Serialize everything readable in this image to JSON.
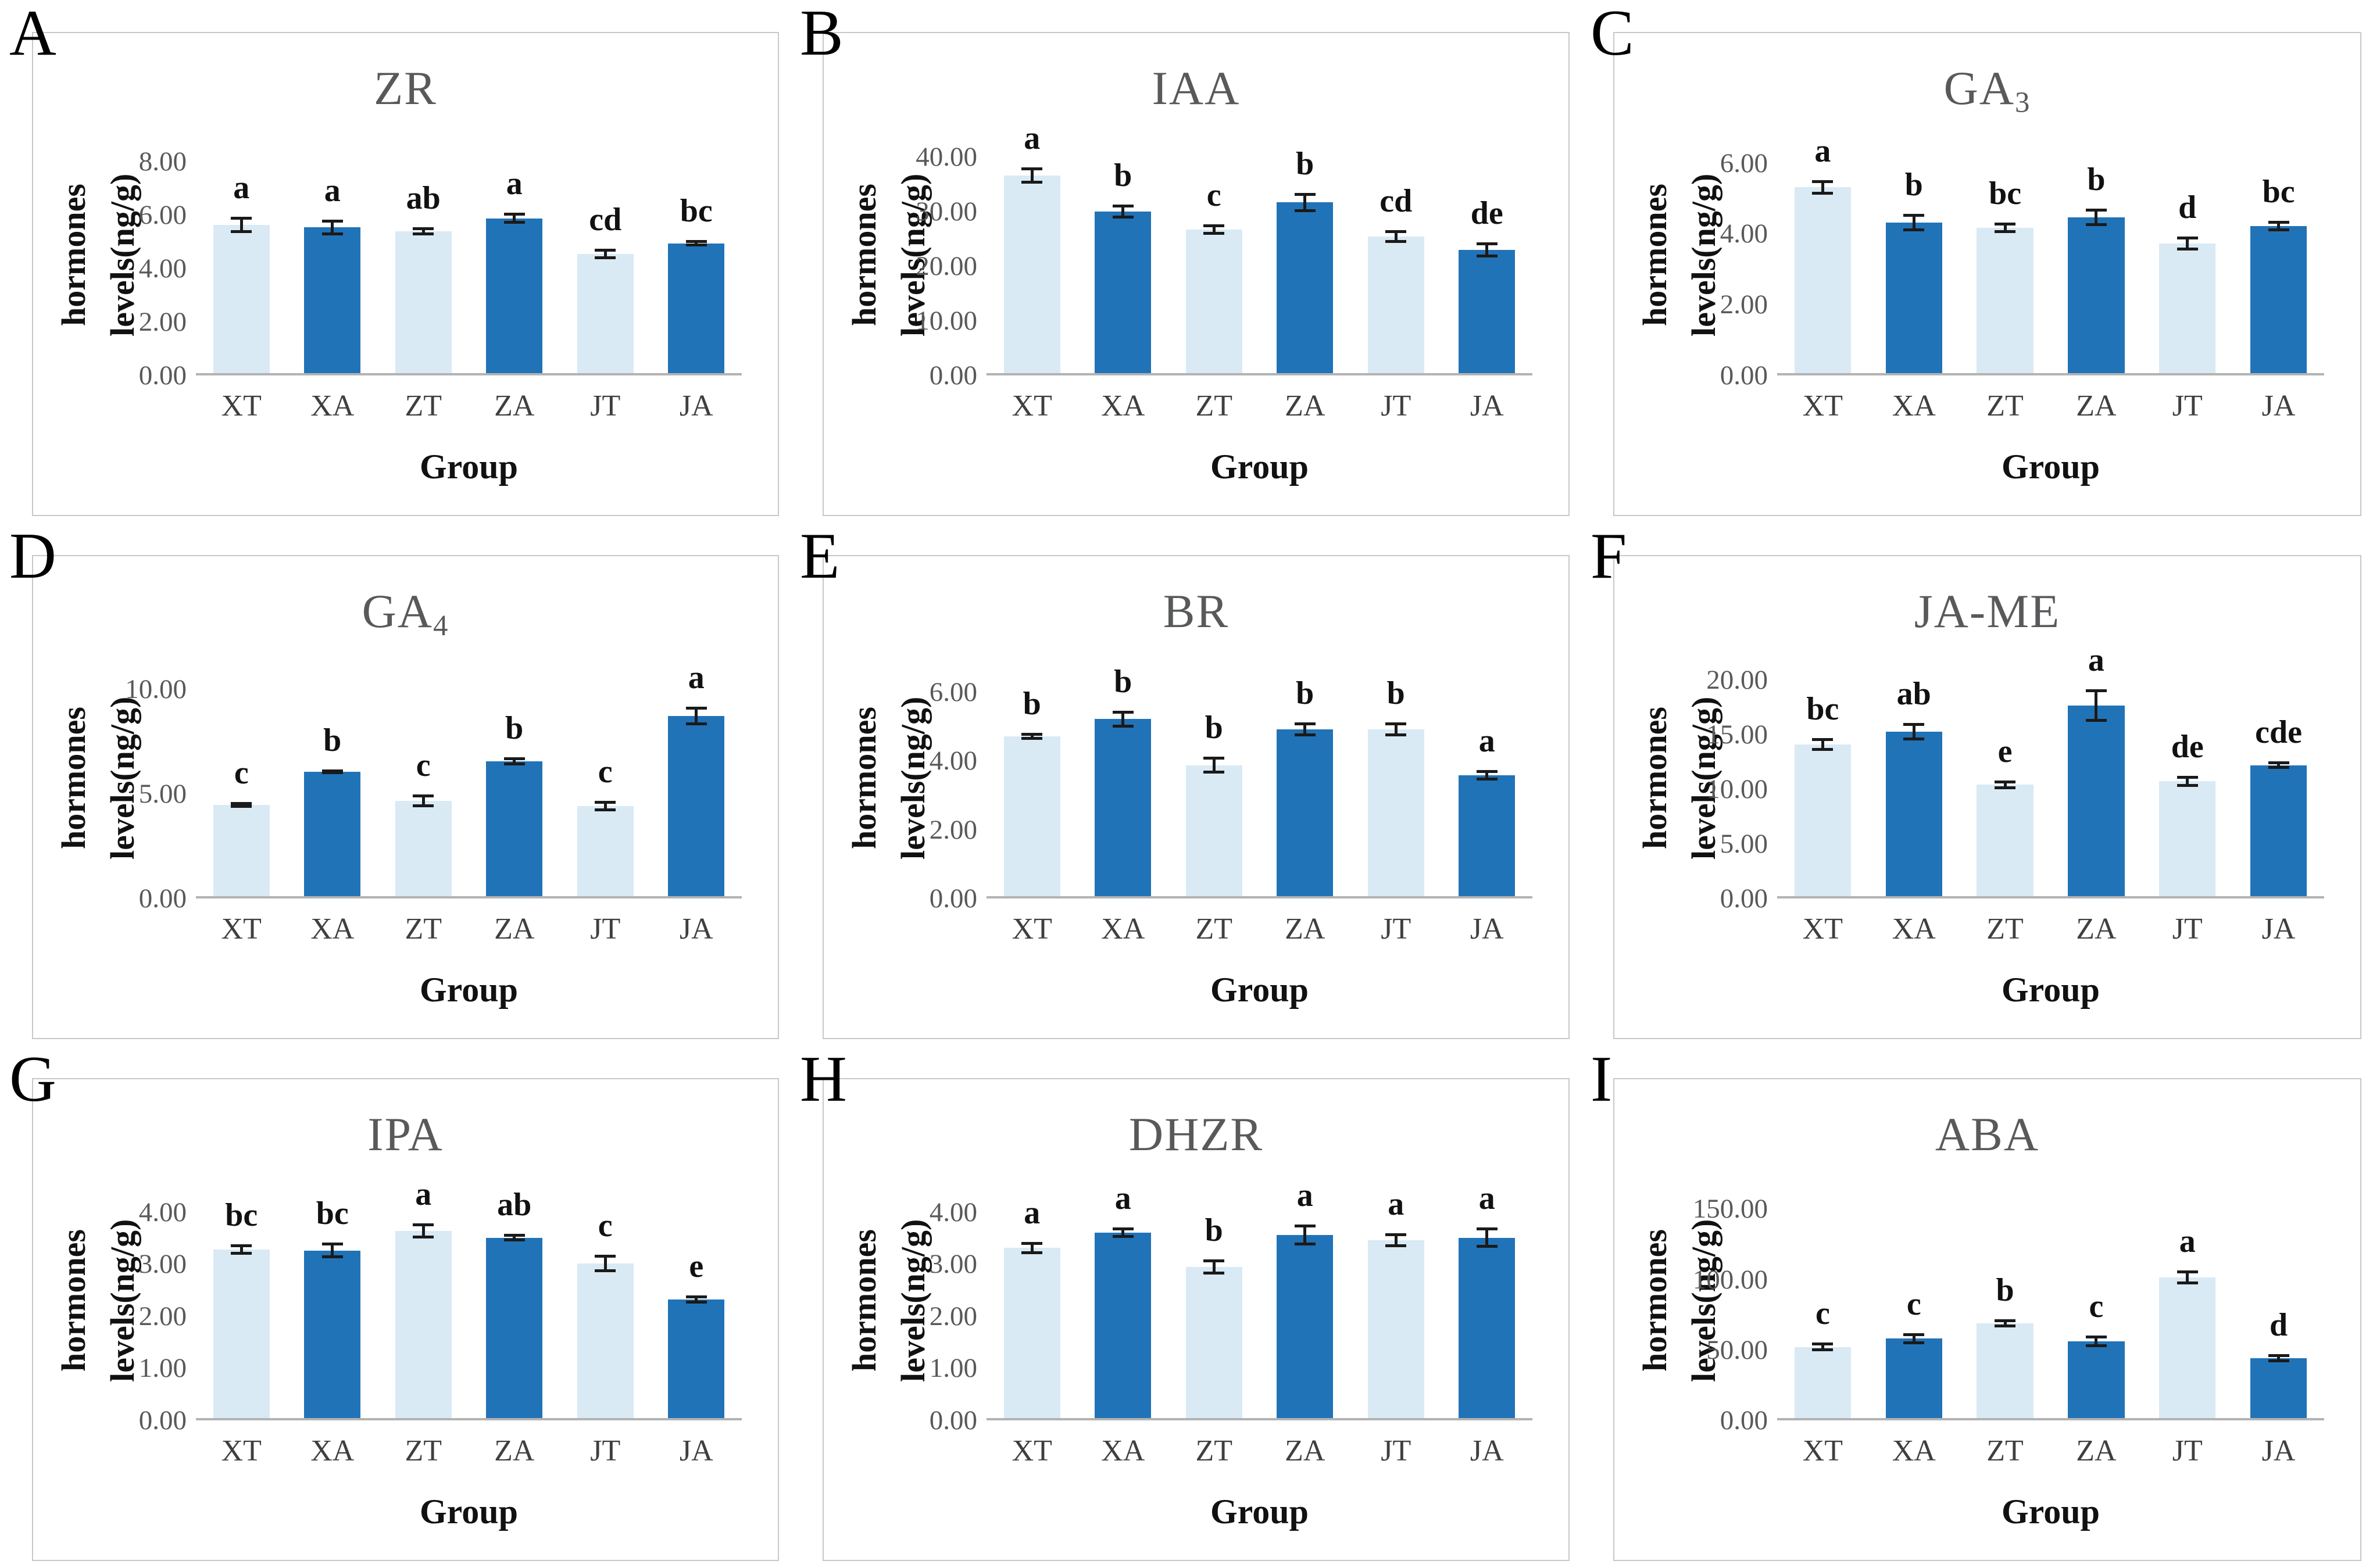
{
  "figure": {
    "ylabel": "hormones levels(ng/g)",
    "xlabel": "Group",
    "categories": [
      "XT",
      "XA",
      "ZT",
      "ZA",
      "JT",
      "JA"
    ]
  },
  "colors": {
    "bar_light": "#d9eaf5",
    "bar_dark": "#2173b8",
    "axis_line": "#b3b3b3",
    "title_text": "#58595b",
    "tick_text": "#595959",
    "category_text": "#3f3f3f",
    "error_bar": "#1a1a1a",
    "card_border": "#c8c8c8"
  },
  "chart_data": [
    {
      "type": "bar",
      "letter": "A",
      "title": "ZR",
      "title_sub": "",
      "ylabel": "hormones levels(ng/g)",
      "xlabel": "Group",
      "categories": [
        "XT",
        "XA",
        "ZT",
        "ZA",
        "JT",
        "JA"
      ],
      "values": [
        5.6,
        5.5,
        5.35,
        5.85,
        4.5,
        4.9
      ],
      "errors": [
        0.3,
        0.3,
        0.15,
        0.2,
        0.2,
        0.12
      ],
      "sig_letters": [
        "a",
        "a",
        "ab",
        "a",
        "cd",
        "bc"
      ],
      "yticks": [
        0,
        2,
        4,
        6,
        8
      ],
      "ytick_labels": [
        "0.00",
        "2.00",
        "4.00",
        "6.00",
        "8.00"
      ],
      "ylim": [
        0,
        9
      ],
      "grid": false,
      "legend": false
    },
    {
      "type": "bar",
      "letter": "B",
      "title": "IAA",
      "title_sub": "",
      "ylabel": "hormones levels(ng/g)",
      "xlabel": "Group",
      "categories": [
        "XT",
        "XA",
        "ZT",
        "ZA",
        "JT",
        "JA"
      ],
      "values": [
        36.5,
        29.8,
        26.5,
        31.5,
        25.2,
        22.8
      ],
      "errors": [
        1.5,
        1.3,
        1.0,
        1.8,
        1.2,
        1.4
      ],
      "sig_letters": [
        "a",
        "b",
        "c",
        "b",
        "cd",
        "de"
      ],
      "yticks": [
        0,
        10,
        20,
        30,
        40
      ],
      "ytick_labels": [
        "0.00",
        "10.00",
        "20.00",
        "30.00",
        "40.00"
      ],
      "ylim": [
        0,
        44
      ],
      "grid": false,
      "legend": false
    },
    {
      "type": "bar",
      "letter": "C",
      "title": "GA",
      "title_sub": "3",
      "ylabel": "hormones levels(ng/g)",
      "xlabel": "Group",
      "categories": [
        "XT",
        "XA",
        "ZT",
        "ZA",
        "JT",
        "JA"
      ],
      "values": [
        5.3,
        4.3,
        4.15,
        4.45,
        3.7,
        4.2
      ],
      "errors": [
        0.2,
        0.25,
        0.15,
        0.25,
        0.2,
        0.15
      ],
      "sig_letters": [
        "a",
        "b",
        "bc",
        "b",
        "d",
        "bc"
      ],
      "yticks": [
        0,
        2,
        4,
        6
      ],
      "ytick_labels": [
        "0.00",
        "2.00",
        "4.00",
        "6.00"
      ],
      "ylim": [
        0,
        6.8
      ],
      "grid": false,
      "legend": false
    },
    {
      "type": "bar",
      "letter": "D",
      "title": "GA",
      "title_sub": "4",
      "ylabel": "hormones levels(ng/g)",
      "xlabel": "Group",
      "categories": [
        "XT",
        "XA",
        "ZT",
        "ZA",
        "JT",
        "JA"
      ],
      "values": [
        4.4,
        6.0,
        4.6,
        6.5,
        4.35,
        8.7
      ],
      "errors": [
        0.15,
        0.12,
        0.3,
        0.2,
        0.25,
        0.45
      ],
      "sig_letters": [
        "c",
        "b",
        "c",
        "b",
        "c",
        "a"
      ],
      "yticks": [
        0,
        5,
        10
      ],
      "ytick_labels": [
        "0.00",
        "5.00",
        "10.00"
      ],
      "ylim": [
        0,
        11.5
      ],
      "grid": false,
      "legend": false
    },
    {
      "type": "bar",
      "letter": "E",
      "title": "BR",
      "title_sub": "",
      "ylabel": "hormones levels(ng/g)",
      "xlabel": "Group",
      "categories": [
        "XT",
        "XA",
        "ZT",
        "ZA",
        "JT",
        "JA"
      ],
      "values": [
        4.7,
        5.2,
        3.85,
        4.9,
        4.9,
        3.55
      ],
      "errors": [
        0.1,
        0.25,
        0.25,
        0.2,
        0.2,
        0.15
      ],
      "sig_letters": [
        "b",
        "b",
        "b",
        "b",
        "b",
        "a"
      ],
      "yticks": [
        0,
        2,
        4,
        6
      ],
      "ytick_labels": [
        "0.00",
        "2.00",
        "4.00",
        "6.00"
      ],
      "ylim": [
        0,
        7
      ],
      "grid": false,
      "legend": false
    },
    {
      "type": "bar",
      "letter": "F",
      "title": "JA-ME",
      "title_sub": "",
      "ylabel": "hormones levels(ng/g)",
      "xlabel": "Group",
      "categories": [
        "XT",
        "XA",
        "ZT",
        "ZA",
        "JT",
        "JA"
      ],
      "values": [
        14.0,
        15.2,
        10.3,
        17.6,
        10.6,
        12.1
      ],
      "errors": [
        0.6,
        0.8,
        0.4,
        1.5,
        0.5,
        0.35
      ],
      "sig_letters": [
        "bc",
        "ab",
        "e",
        "a",
        "de",
        "cde"
      ],
      "yticks": [
        0,
        5,
        10,
        15,
        20
      ],
      "ytick_labels": [
        "0.00",
        "5.00",
        "10.00",
        "15.00",
        "20.00"
      ],
      "ylim": [
        0,
        22
      ],
      "grid": false,
      "legend": false
    },
    {
      "type": "bar",
      "letter": "G",
      "title": "IPA",
      "title_sub": "",
      "ylabel": "hormones levels(ng/g)",
      "xlabel": "Group",
      "categories": [
        "XT",
        "XA",
        "ZT",
        "ZA",
        "JT",
        "JA"
      ],
      "values": [
        3.27,
        3.25,
        3.63,
        3.5,
        3.0,
        2.3
      ],
      "errors": [
        0.1,
        0.15,
        0.15,
        0.07,
        0.17,
        0.08
      ],
      "sig_letters": [
        "bc",
        "bc",
        "a",
        "ab",
        "c",
        "e"
      ],
      "yticks": [
        0,
        1,
        2,
        3,
        4
      ],
      "ytick_labels": [
        "0.00",
        "1.00",
        "2.00",
        "3.00",
        "4.00"
      ],
      "ylim": [
        0,
        4.6
      ],
      "grid": false,
      "legend": false
    },
    {
      "type": "bar",
      "letter": "H",
      "title": "DHZR",
      "title_sub": "",
      "ylabel": "hormones levels(ng/g)",
      "xlabel": "Group",
      "categories": [
        "XT",
        "XA",
        "ZT",
        "ZA",
        "JT",
        "JA"
      ],
      "values": [
        3.3,
        3.6,
        2.93,
        3.55,
        3.45,
        3.5
      ],
      "errors": [
        0.12,
        0.1,
        0.15,
        0.2,
        0.13,
        0.2
      ],
      "sig_letters": [
        "a",
        "a",
        "b",
        "a",
        "a",
        "a"
      ],
      "yticks": [
        0,
        1,
        2,
        3,
        4
      ],
      "ytick_labels": [
        "0.00",
        "1.00",
        "2.00",
        "3.00",
        "4.00"
      ],
      "ylim": [
        0,
        4.6
      ],
      "grid": false,
      "legend": false
    },
    {
      "type": "bar",
      "letter": "I",
      "title": "ABA",
      "title_sub": "",
      "ylabel": "hormones levels(ng/g)",
      "xlabel": "Group",
      "categories": [
        "XT",
        "XA",
        "ZT",
        "ZA",
        "JT",
        "JA"
      ],
      "values": [
        51,
        57,
        68,
        55,
        101,
        43
      ],
      "errors": [
        3,
        4,
        3,
        4,
        5,
        3
      ],
      "sig_letters": [
        "c",
        "c",
        "b",
        "c",
        "a",
        "d"
      ],
      "yticks": [
        0,
        50,
        100,
        150
      ],
      "ytick_labels": [
        "0.00",
        "50.00",
        "100.00",
        "150.00"
      ],
      "ylim": [
        0,
        170
      ],
      "grid": false,
      "legend": false
    }
  ]
}
